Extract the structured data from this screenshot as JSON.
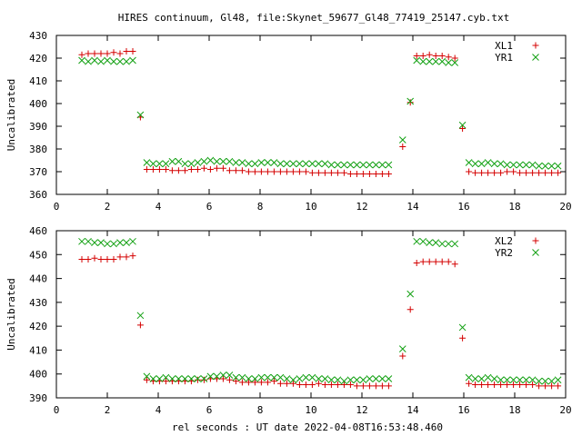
{
  "figure": {
    "title": "HIRES continuum, Gl48, file:Skynet_59677_Gl48_77419_25147.cyb.txt",
    "xlabel": "rel seconds : UT date 2022-04-08T16:53:48.460"
  },
  "chart_data": [
    {
      "type": "scatter",
      "title": "HIRES continuum, Gl48, file:Skynet_59677_Gl48_77419_25147.cyb.txt",
      "xlabel": "",
      "ylabel": "Uncalibrated",
      "xlim": [
        0,
        20
      ],
      "ylim": [
        360,
        430
      ],
      "xticks": [
        0,
        2,
        4,
        6,
        8,
        10,
        12,
        14,
        16,
        18,
        20
      ],
      "yticks": [
        360,
        370,
        380,
        390,
        400,
        410,
        420,
        430
      ],
      "legend": "top-right",
      "series": [
        {
          "name": "XL1",
          "marker": "plus",
          "color": "#d40000",
          "x": [
            1.0,
            1.25,
            1.5,
            1.75,
            2.0,
            2.25,
            2.5,
            2.75,
            3.0,
            3.3,
            3.55,
            3.8,
            4.05,
            4.3,
            4.55,
            4.8,
            5.05,
            5.3,
            5.55,
            5.8,
            6.05,
            6.3,
            6.55,
            6.8,
            7.05,
            7.3,
            7.55,
            7.8,
            8.05,
            8.3,
            8.55,
            8.8,
            9.05,
            9.3,
            9.55,
            9.8,
            10.05,
            10.3,
            10.55,
            10.8,
            11.05,
            11.3,
            11.55,
            11.8,
            12.05,
            12.3,
            12.55,
            12.8,
            13.05,
            13.6,
            13.9,
            14.15,
            14.4,
            14.65,
            14.9,
            15.15,
            15.4,
            15.65,
            15.95,
            16.2,
            16.45,
            16.7,
            16.95,
            17.2,
            17.45,
            17.7,
            17.95,
            18.2,
            18.45,
            18.7,
            18.95,
            19.2,
            19.45,
            19.7
          ],
          "y": [
            421.5,
            422,
            422,
            422,
            422,
            422.5,
            422,
            423,
            423,
            394,
            371,
            371,
            371,
            371,
            370.5,
            370.5,
            370.5,
            371,
            371,
            371.5,
            371,
            371.5,
            371.5,
            370.5,
            370.5,
            370.5,
            370,
            370,
            370,
            370,
            370,
            370,
            370,
            370,
            370,
            370,
            369.5,
            369.5,
            369.5,
            369.5,
            369.5,
            369.5,
            369,
            369,
            369,
            369,
            369,
            369,
            369,
            381,
            400.5,
            421,
            421,
            421.5,
            421,
            421,
            420.5,
            420,
            389,
            370,
            369.5,
            369.5,
            369.5,
            369.5,
            369.5,
            370,
            370,
            369.5,
            369.5,
            369.5,
            369.5,
            369.5,
            369.5,
            369.5
          ]
        },
        {
          "name": "YR1",
          "marker": "cross",
          "color": "#12a012",
          "x": [
            1.0,
            1.25,
            1.5,
            1.75,
            2.0,
            2.25,
            2.5,
            2.75,
            3.0,
            3.3,
            3.55,
            3.8,
            4.05,
            4.3,
            4.55,
            4.8,
            5.05,
            5.3,
            5.55,
            5.8,
            6.05,
            6.3,
            6.55,
            6.8,
            7.05,
            7.3,
            7.55,
            7.8,
            8.05,
            8.3,
            8.55,
            8.8,
            9.05,
            9.3,
            9.55,
            9.8,
            10.05,
            10.3,
            10.55,
            10.8,
            11.05,
            11.3,
            11.55,
            11.8,
            12.05,
            12.3,
            12.55,
            12.8,
            13.05,
            13.6,
            13.9,
            14.15,
            14.4,
            14.65,
            14.9,
            15.15,
            15.4,
            15.65,
            15.95,
            16.2,
            16.45,
            16.7,
            16.95,
            17.2,
            17.45,
            17.7,
            17.95,
            18.2,
            18.45,
            18.7,
            18.95,
            19.2,
            19.45,
            19.7
          ],
          "y": [
            419,
            418.5,
            419,
            418.5,
            419,
            418.5,
            418.5,
            418.5,
            419,
            395,
            374,
            373.5,
            373.5,
            373.5,
            374.5,
            374.5,
            373.5,
            373.5,
            374,
            374.5,
            375,
            374.5,
            374.5,
            374.5,
            374,
            374,
            373.5,
            373.5,
            374,
            374,
            374,
            373.5,
            373.5,
            373.5,
            373.5,
            373.5,
            373.5,
            373.5,
            373.5,
            373,
            373,
            373,
            373,
            373,
            373,
            373,
            373,
            373,
            373,
            384,
            401,
            419,
            418.5,
            418.5,
            418.5,
            418.5,
            418,
            418,
            390.5,
            374,
            373.5,
            373.5,
            374,
            373.5,
            373.5,
            373,
            373,
            373,
            373,
            373,
            372.5,
            372.5,
            372.5,
            372.5
          ]
        }
      ]
    },
    {
      "type": "scatter",
      "title": "",
      "xlabel": "rel seconds : UT date 2022-04-08T16:53:48.460",
      "ylabel": "Uncalibrated",
      "xlim": [
        0,
        20
      ],
      "ylim": [
        390,
        460
      ],
      "xticks": [
        0,
        2,
        4,
        6,
        8,
        10,
        12,
        14,
        16,
        18,
        20
      ],
      "yticks": [
        390,
        400,
        410,
        420,
        430,
        440,
        450,
        460
      ],
      "legend": "top-right",
      "series": [
        {
          "name": "XL2",
          "marker": "plus",
          "color": "#d40000",
          "x": [
            1.0,
            1.25,
            1.5,
            1.75,
            2.0,
            2.25,
            2.5,
            2.75,
            3.0,
            3.3,
            3.55,
            3.8,
            4.05,
            4.3,
            4.55,
            4.8,
            5.05,
            5.3,
            5.55,
            5.8,
            6.05,
            6.3,
            6.55,
            6.8,
            7.05,
            7.3,
            7.55,
            7.8,
            8.05,
            8.3,
            8.55,
            8.8,
            9.05,
            9.3,
            9.55,
            9.8,
            10.05,
            10.3,
            10.55,
            10.8,
            11.05,
            11.3,
            11.55,
            11.8,
            12.05,
            12.3,
            12.55,
            12.8,
            13.05,
            13.6,
            13.9,
            14.15,
            14.4,
            14.65,
            14.9,
            15.15,
            15.4,
            15.65,
            15.95,
            16.2,
            16.45,
            16.7,
            16.95,
            17.2,
            17.45,
            17.7,
            17.95,
            18.2,
            18.45,
            18.7,
            18.95,
            19.2,
            19.45,
            19.7
          ],
          "y": [
            448,
            448,
            448.5,
            448,
            448,
            448,
            449,
            449,
            449.5,
            420.5,
            397.5,
            397,
            397,
            397,
            397,
            397,
            397,
            397,
            397.5,
            397.5,
            398,
            398,
            398,
            397.5,
            397,
            396.5,
            396.5,
            396.5,
            396.5,
            396.5,
            397,
            396,
            396,
            396,
            395.5,
            395.5,
            395.5,
            396,
            395.5,
            395.5,
            395.5,
            395.5,
            395.5,
            395,
            395,
            395,
            395,
            395,
            395,
            407.5,
            427,
            446.5,
            447,
            447,
            447,
            447,
            447,
            446,
            415,
            396,
            395.5,
            395.5,
            395.5,
            395.5,
            395.5,
            395.5,
            395.5,
            395.5,
            395.5,
            395.5,
            395,
            395,
            395,
            395
          ]
        },
        {
          "name": "YR2",
          "marker": "cross",
          "color": "#12a012",
          "x": [
            1.0,
            1.25,
            1.5,
            1.75,
            2.0,
            2.25,
            2.5,
            2.75,
            3.0,
            3.3,
            3.55,
            3.8,
            4.05,
            4.3,
            4.55,
            4.8,
            5.05,
            5.3,
            5.55,
            5.8,
            6.05,
            6.3,
            6.55,
            6.8,
            7.05,
            7.3,
            7.55,
            7.8,
            8.05,
            8.3,
            8.55,
            8.8,
            9.05,
            9.3,
            9.55,
            9.8,
            10.05,
            10.3,
            10.55,
            10.8,
            11.05,
            11.3,
            11.55,
            11.8,
            12.05,
            12.3,
            12.55,
            12.8,
            13.05,
            13.6,
            13.9,
            14.15,
            14.4,
            14.65,
            14.9,
            15.15,
            15.4,
            15.65,
            15.95,
            16.2,
            16.45,
            16.7,
            16.95,
            17.2,
            17.45,
            17.7,
            17.95,
            18.2,
            18.45,
            18.7,
            18.95,
            19.2,
            19.45,
            19.7
          ],
          "y": [
            455.5,
            455.5,
            455,
            455,
            454.5,
            454.5,
            455,
            455,
            455.5,
            424.5,
            399,
            398,
            398,
            398.5,
            398,
            398,
            398,
            398,
            398,
            398,
            399,
            399,
            399.5,
            399.5,
            398.5,
            398.5,
            398,
            398,
            398.5,
            398.5,
            398.5,
            398.5,
            398,
            397.5,
            398,
            398.5,
            398.5,
            398,
            398,
            397.5,
            397.5,
            397,
            397.5,
            397.5,
            397.5,
            398,
            398,
            398,
            398,
            410.5,
            433.5,
            455.5,
            455.5,
            455,
            455,
            454.5,
            454.5,
            454.5,
            419.5,
            398.5,
            398,
            398,
            398.5,
            398,
            397.5,
            397.5,
            397.5,
            397.5,
            397.5,
            397.5,
            397,
            397,
            397,
            397.5
          ]
        }
      ]
    }
  ]
}
